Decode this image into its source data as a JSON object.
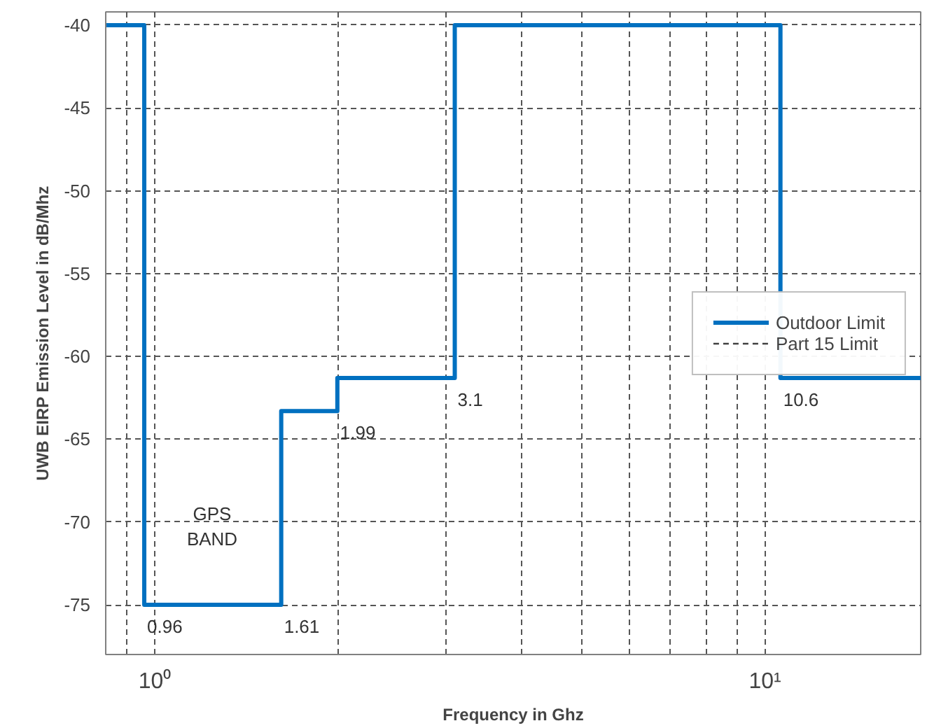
{
  "chart_data": {
    "type": "step",
    "xlabel": "Frequency in Ghz",
    "ylabel": "UWB EIRP Emission Level in dB/Mhz",
    "log": "x",
    "xlim": [
      0.83,
      18
    ],
    "ylim": [
      -78,
      -39.2
    ],
    "xticks": [
      {
        "value": 0.9,
        "label": null
      },
      {
        "value": 1,
        "label": "10⁰"
      },
      {
        "value": 2,
        "label": null
      },
      {
        "value": 3,
        "label": null
      },
      {
        "value": 4,
        "label": null
      },
      {
        "value": 5,
        "label": null
      },
      {
        "value": 6,
        "label": null
      },
      {
        "value": 7,
        "label": null
      },
      {
        "value": 8,
        "label": null
      },
      {
        "value": 9,
        "label": null
      },
      {
        "value": 10,
        "label": "10¹"
      }
    ],
    "yticks": [
      -40,
      -45,
      -50,
      -55,
      -60,
      -65,
      -70,
      -75
    ],
    "grid": true,
    "legend": "right",
    "series": [
      {
        "name": "Outdoor Limit",
        "color": "#0070c0",
        "line_style": "solid",
        "x": [
          0.83,
          0.96,
          1.61,
          1.99,
          3.1,
          10.6,
          18
        ],
        "values": [
          -40,
          -75,
          -63.3,
          -61.3,
          -40,
          -61.3,
          -61.3
        ]
      },
      {
        "name": "Part 15 Limit",
        "color": "#404040",
        "line_style": "dashed",
        "values": [
          null
        ]
      }
    ],
    "annotations": [
      {
        "text": "0.96",
        "x": 0.96,
        "y": -75
      },
      {
        "text": "1.61",
        "x": 1.61,
        "y": -75
      },
      {
        "text": "1.99",
        "x": 1.99,
        "y": -63.3
      },
      {
        "text": "3.1",
        "x": 3.1,
        "y": -61.3
      },
      {
        "text": "10.6",
        "x": 10.6,
        "y": -61.3
      },
      "GPS\nBAND"
    ]
  }
}
